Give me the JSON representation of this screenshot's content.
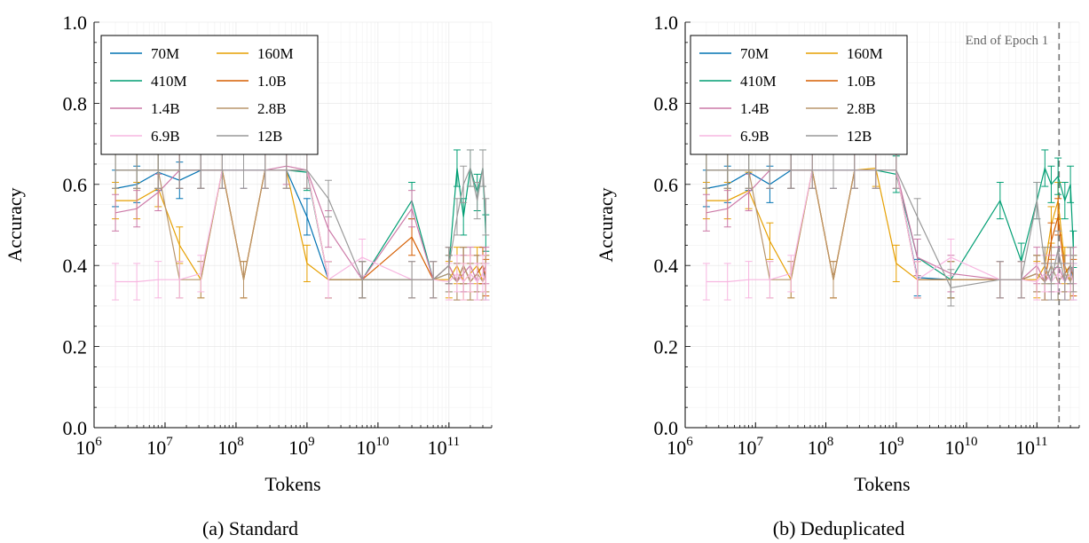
{
  "chart_data": [
    {
      "type": "line",
      "panel": "a",
      "caption": "(a) Standard",
      "xlabel": "Tokens",
      "ylabel": "Accuracy",
      "xscale": "log",
      "xlim": [
        1000000,
        400000000000
      ],
      "ylim": [
        0,
        1
      ],
      "xtick_labels": [
        "10^6",
        "10^7",
        "10^8",
        "10^9",
        "10^10",
        "10^11"
      ],
      "ytick_labels": [
        "0.0",
        "0.2",
        "0.4",
        "0.6",
        "0.8",
        "1.0"
      ],
      "grid": true,
      "legend": "top-left",
      "x": [
        2000000,
        4000000,
        8000000,
        16000000,
        32000000,
        64000000,
        128000000,
        256000000,
        512000000,
        1000000000,
        2000000000,
        6000000000,
        30000000000,
        60000000000,
        100000000000,
        130000000000,
        160000000000,
        200000000000,
        250000000000,
        300000000000,
        330000000000
      ],
      "error_bar": 0.045,
      "series": [
        {
          "name": "70M",
          "color": "#0072b2",
          "values": [
            0.59,
            0.6,
            0.63,
            0.61,
            0.635,
            0.635,
            0.635,
            0.635,
            0.635,
            0.52,
            0.365,
            0.365,
            0.365,
            0.365,
            0.38,
            0.36,
            0.4,
            0.36,
            0.38,
            0.4,
            0.36
          ]
        },
        {
          "name": "160M",
          "color": "#e69f00",
          "values": [
            0.56,
            0.56,
            0.59,
            0.45,
            0.365,
            0.635,
            0.365,
            0.635,
            0.635,
            0.405,
            0.365,
            0.365,
            0.365,
            0.365,
            0.365,
            0.4,
            0.36,
            0.38,
            0.4,
            0.36,
            0.38
          ]
        },
        {
          "name": "410M",
          "color": "#009e73",
          "values": [
            0.635,
            0.635,
            0.635,
            0.635,
            0.635,
            0.635,
            0.635,
            0.635,
            0.635,
            0.63,
            0.365,
            0.365,
            0.56,
            0.365,
            0.4,
            0.64,
            0.52,
            0.64,
            0.58,
            0.64,
            0.48
          ]
        },
        {
          "name": "1.0B",
          "color": "#d55e00",
          "values": [
            0.635,
            0.635,
            0.635,
            0.635,
            0.635,
            0.635,
            0.365,
            0.635,
            0.635,
            0.635,
            0.365,
            0.365,
            0.47,
            0.365,
            0.4,
            0.36,
            0.4,
            0.36,
            0.38,
            0.4,
            0.37
          ]
        },
        {
          "name": "1.4B",
          "color": "#cc79a7",
          "values": [
            0.53,
            0.54,
            0.58,
            0.635,
            0.635,
            0.635,
            0.635,
            0.635,
            0.645,
            0.635,
            0.49,
            0.365,
            0.54,
            0.365,
            0.4,
            0.36,
            0.38,
            0.4,
            0.36,
            0.38,
            0.4
          ]
        },
        {
          "name": "2.8B",
          "color": "#b8956b",
          "values": [
            0.635,
            0.635,
            0.635,
            0.365,
            0.365,
            0.635,
            0.365,
            0.635,
            0.635,
            0.635,
            0.365,
            0.365,
            0.365,
            0.365,
            0.38,
            0.36,
            0.4,
            0.36,
            0.38,
            0.36,
            0.38
          ]
        },
        {
          "name": "6.9B",
          "color": "#f7b6e0",
          "values": [
            0.36,
            0.36,
            0.365,
            0.365,
            0.38,
            0.635,
            0.635,
            0.635,
            0.635,
            0.635,
            0.365,
            0.42,
            0.365,
            0.365,
            0.36,
            0.38,
            0.36,
            0.38,
            0.36,
            0.38,
            0.36
          ]
        },
        {
          "name": "12B",
          "color": "#999999",
          "values": [
            0.635,
            0.635,
            0.635,
            0.635,
            0.635,
            0.635,
            0.635,
            0.635,
            0.635,
            0.635,
            0.565,
            0.365,
            0.365,
            0.365,
            0.4,
            0.52,
            0.6,
            0.64,
            0.56,
            0.64,
            0.52
          ]
        }
      ]
    },
    {
      "type": "line",
      "panel": "b",
      "caption": "(b) Deduplicated",
      "xlabel": "Tokens",
      "ylabel": "Accuracy",
      "xscale": "log",
      "xlim": [
        1000000,
        400000000000
      ],
      "ylim": [
        0,
        1
      ],
      "xtick_labels": [
        "10^6",
        "10^7",
        "10^8",
        "10^9",
        "10^10",
        "10^11"
      ],
      "ytick_labels": [
        "0.0",
        "0.2",
        "0.4",
        "0.6",
        "0.8",
        "1.0"
      ],
      "grid": true,
      "legend": "top-left",
      "annotation": {
        "label": "End of Epoch 1",
        "x": 207000000000
      },
      "x": [
        2000000,
        4000000,
        8000000,
        16000000,
        32000000,
        64000000,
        128000000,
        256000000,
        512000000,
        1000000000,
        2000000000,
        6000000000,
        30000000000,
        60000000000,
        100000000000,
        130000000000,
        160000000000,
        200000000000,
        250000000000,
        300000000000,
        330000000000
      ],
      "error_bar": 0.045,
      "series": [
        {
          "name": "70M",
          "color": "#0072b2",
          "values": [
            0.59,
            0.6,
            0.63,
            0.6,
            0.635,
            0.635,
            0.635,
            0.635,
            0.635,
            0.635,
            0.37,
            0.365,
            0.365,
            0.365,
            0.38,
            0.36,
            0.4,
            0.36,
            0.38,
            0.4,
            0.36
          ]
        },
        {
          "name": "160M",
          "color": "#e69f00",
          "values": [
            0.56,
            0.56,
            0.585,
            0.46,
            0.365,
            0.635,
            0.365,
            0.635,
            0.64,
            0.405,
            0.365,
            0.365,
            0.365,
            0.365,
            0.365,
            0.4,
            0.5,
            0.56,
            0.4,
            0.36,
            0.38
          ]
        },
        {
          "name": "410M",
          "color": "#009e73",
          "values": [
            0.635,
            0.635,
            0.635,
            0.635,
            0.635,
            0.635,
            0.635,
            0.635,
            0.635,
            0.625,
            0.42,
            0.365,
            0.56,
            0.41,
            0.56,
            0.64,
            0.6,
            0.62,
            0.56,
            0.6,
            0.44
          ]
        },
        {
          "name": "1.0B",
          "color": "#d55e00",
          "values": [
            0.635,
            0.635,
            0.635,
            0.635,
            0.635,
            0.635,
            0.365,
            0.635,
            0.635,
            0.635,
            0.365,
            0.365,
            0.365,
            0.365,
            0.38,
            0.36,
            0.46,
            0.52,
            0.38,
            0.4,
            0.37
          ]
        },
        {
          "name": "1.4B",
          "color": "#cc79a7",
          "values": [
            0.53,
            0.54,
            0.58,
            0.635,
            0.635,
            0.635,
            0.635,
            0.635,
            0.635,
            0.635,
            0.42,
            0.38,
            0.365,
            0.365,
            0.4,
            0.36,
            0.38,
            0.4,
            0.36,
            0.38,
            0.4
          ]
        },
        {
          "name": "2.8B",
          "color": "#b8956b",
          "values": [
            0.635,
            0.635,
            0.635,
            0.365,
            0.365,
            0.635,
            0.365,
            0.635,
            0.635,
            0.635,
            0.365,
            0.365,
            0.365,
            0.365,
            0.38,
            0.36,
            0.4,
            0.36,
            0.38,
            0.36,
            0.38
          ]
        },
        {
          "name": "6.9B",
          "color": "#f7b6e0",
          "values": [
            0.36,
            0.36,
            0.365,
            0.365,
            0.38,
            0.635,
            0.635,
            0.635,
            0.635,
            0.635,
            0.365,
            0.42,
            0.365,
            0.365,
            0.36,
            0.38,
            0.36,
            0.38,
            0.36,
            0.38,
            0.36
          ]
        },
        {
          "name": "12B",
          "color": "#999999",
          "values": [
            0.635,
            0.635,
            0.635,
            0.635,
            0.635,
            0.635,
            0.635,
            0.635,
            0.635,
            0.635,
            0.52,
            0.345,
            0.365,
            0.365,
            0.56,
            0.4,
            0.36,
            0.44,
            0.36,
            0.4,
            0.38
          ]
        }
      ]
    }
  ]
}
